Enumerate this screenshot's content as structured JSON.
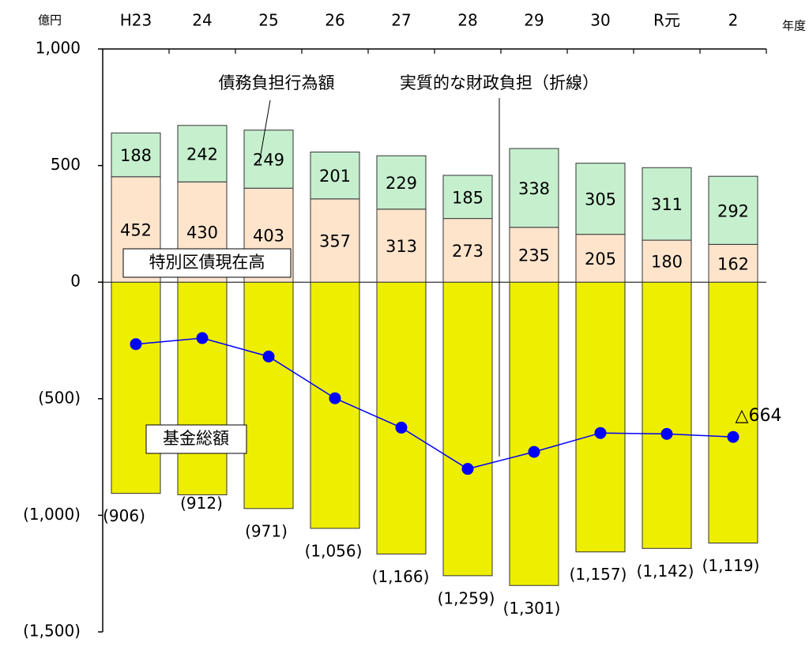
{
  "chart_data": {
    "type": "bar",
    "stacked": true,
    "y_unit_label": "億円",
    "x_unit_label": "年度",
    "categories": [
      "H23",
      "24",
      "25",
      "26",
      "27",
      "28",
      "29",
      "30",
      "R元",
      "2"
    ],
    "y_ticks": [
      {
        "value": 1000,
        "label": "1,000"
      },
      {
        "value": 500,
        "label": "500"
      },
      {
        "value": 0,
        "label": "0"
      },
      {
        "value": -500,
        "label": "(500)"
      },
      {
        "value": -1000,
        "label": "(1,000)"
      },
      {
        "value": -1500,
        "label": "(1,500)"
      }
    ],
    "ylim": [
      -1500,
      1000
    ],
    "series": [
      {
        "name": "特別区債現在高",
        "color": "#FFE4CC",
        "values": [
          452,
          430,
          403,
          357,
          313,
          273,
          235,
          205,
          180,
          162
        ]
      },
      {
        "name": "債務負担行為額",
        "color": "#C6EFCE",
        "values": [
          188,
          242,
          249,
          201,
          229,
          185,
          338,
          305,
          311,
          292
        ]
      },
      {
        "name": "基金総額",
        "color": "#EEEE00",
        "values": [
          -906,
          -912,
          -971,
          -1056,
          -1166,
          -1259,
          -1301,
          -1157,
          -1142,
          -1119
        ],
        "value_labels": [
          "(906)",
          "(912)",
          "(971)",
          "(1,056)",
          "(1,166)",
          "(1,259)",
          "(1,301)",
          "(1,157)",
          "(1,142)",
          "(1,119)"
        ]
      }
    ],
    "line": {
      "name": "実質的な財政負担（折線）",
      "color": "#0000FF",
      "values": [
        -266,
        -240,
        -319,
        -498,
        -624,
        -801,
        -728,
        -647,
        -651,
        -664
      ],
      "last_label": "△664",
      "last_label_color": "#FF0000"
    },
    "annotations": [
      "債務負担行為額",
      "実質的な財政負担（折線）",
      "特別区債現在高",
      "基金総額"
    ]
  }
}
